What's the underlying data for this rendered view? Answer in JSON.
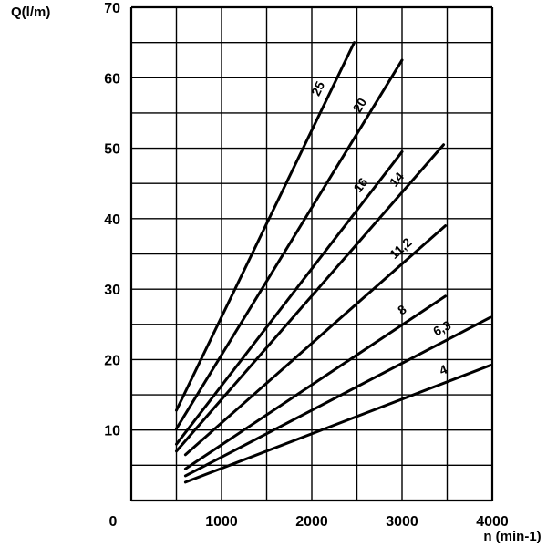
{
  "chart_data": {
    "type": "line",
    "title": "",
    "xlabel": "n (min-1)",
    "ylabel": "Q(l/m)",
    "xlim": [
      0,
      4000
    ],
    "ylim": [
      0,
      70
    ],
    "grid": true,
    "x_ticks": [
      "0",
      "1000",
      "2000",
      "3000",
      "4000"
    ],
    "y_ticks": [
      "10",
      "20",
      "30",
      "40",
      "50",
      "60",
      "70"
    ],
    "series": [
      {
        "name": "25",
        "x": [
          500,
          2470
        ],
        "y": [
          12.8,
          65.0
        ]
      },
      {
        "name": "20",
        "x": [
          500,
          3000
        ],
        "y": [
          10.2,
          62.5
        ]
      },
      {
        "name": "16",
        "x": [
          500,
          3000
        ],
        "y": [
          8.0,
          49.5
        ]
      },
      {
        "name": "14",
        "x": [
          500,
          3460
        ],
        "y": [
          7.0,
          50.5
        ]
      },
      {
        "name": "11,2",
        "x": [
          600,
          3480
        ],
        "y": [
          6.5,
          39.0
        ]
      },
      {
        "name": "8",
        "x": [
          600,
          3480
        ],
        "y": [
          4.5,
          29.0
        ]
      },
      {
        "name": "6,3",
        "x": [
          600,
          3980
        ],
        "y": [
          3.5,
          26.0
        ]
      },
      {
        "name": "4",
        "x": [
          600,
          3980
        ],
        "y": [
          2.6,
          19.2
        ]
      }
    ]
  }
}
